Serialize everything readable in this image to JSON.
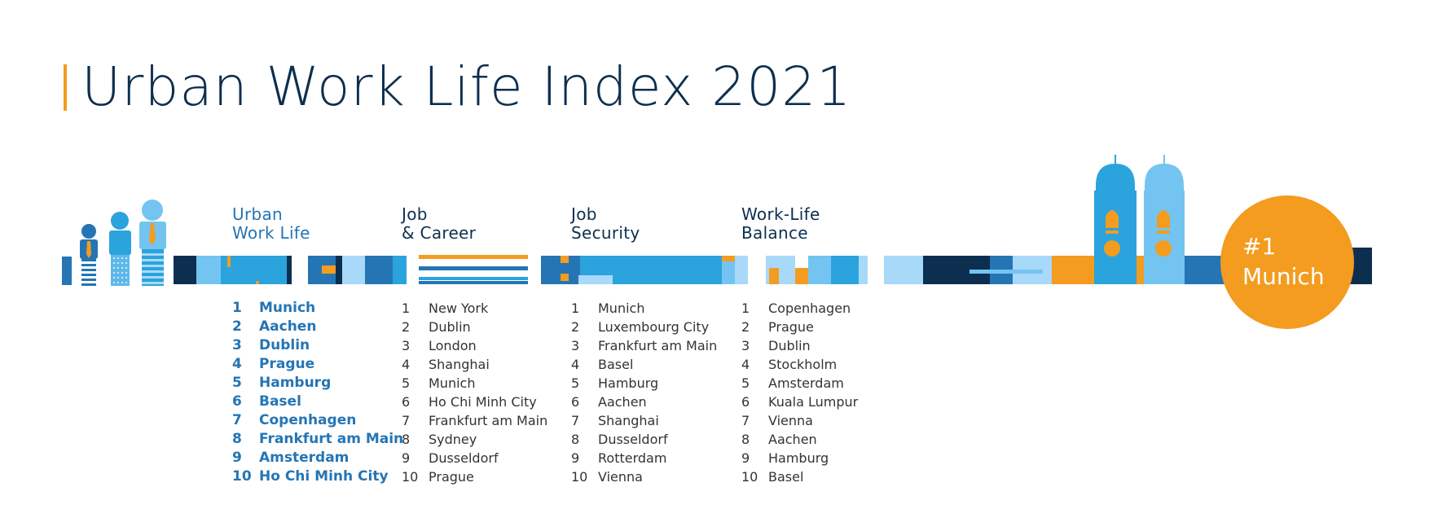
{
  "title": "Urban Work Life Index 2021",
  "badge": {
    "rank": "#1",
    "city": "Munich"
  },
  "colors": {
    "navy": "#0d2f4f",
    "blue": "#2575b4",
    "mid_blue": "#2ba3dd",
    "light_blue": "#74c4f2",
    "pale_blue": "#a8d9f8",
    "orange": "#f39c1f"
  },
  "icons": [
    "people-icon",
    "twin-tower-church-icon"
  ],
  "columns": [
    {
      "id": "urban",
      "heading": [
        "Urban",
        "Work Life"
      ],
      "items": [
        {
          "rank": "1",
          "city": "Munich"
        },
        {
          "rank": "2",
          "city": "Aachen"
        },
        {
          "rank": "3",
          "city": "Dublin"
        },
        {
          "rank": "4",
          "city": "Prague"
        },
        {
          "rank": "5",
          "city": "Hamburg"
        },
        {
          "rank": "6",
          "city": "Basel"
        },
        {
          "rank": "7",
          "city": "Copenhagen"
        },
        {
          "rank": "8",
          "city": "Frankfurt am Main"
        },
        {
          "rank": "9",
          "city": "Amsterdam"
        },
        {
          "rank": "10",
          "city": "Ho Chi Minh City"
        }
      ]
    },
    {
      "id": "career",
      "heading": [
        "Job",
        "& Career"
      ],
      "items": [
        {
          "rank": "1",
          "city": "New York"
        },
        {
          "rank": "2",
          "city": "Dublin"
        },
        {
          "rank": "3",
          "city": "London"
        },
        {
          "rank": "4",
          "city": "Shanghai"
        },
        {
          "rank": "5",
          "city": "Munich"
        },
        {
          "rank": "6",
          "city": "Ho Chi Minh City"
        },
        {
          "rank": "7",
          "city": "Frankfurt am Main"
        },
        {
          "rank": "8",
          "city": "Sydney"
        },
        {
          "rank": "9",
          "city": "Dusseldorf"
        },
        {
          "rank": "10",
          "city": "Prague"
        }
      ]
    },
    {
      "id": "security",
      "heading": [
        "Job",
        "Security"
      ],
      "items": [
        {
          "rank": "1",
          "city": "Munich"
        },
        {
          "rank": "2",
          "city": "Luxembourg City"
        },
        {
          "rank": "3",
          "city": "Frankfurt am Main"
        },
        {
          "rank": "4",
          "city": "Basel"
        },
        {
          "rank": "5",
          "city": "Hamburg"
        },
        {
          "rank": "6",
          "city": "Aachen"
        },
        {
          "rank": "7",
          "city": "Shanghai"
        },
        {
          "rank": "8",
          "city": "Dusseldorf"
        },
        {
          "rank": "9",
          "city": "Rotterdam"
        },
        {
          "rank": "10",
          "city": "Vienna"
        }
      ]
    },
    {
      "id": "balance",
      "heading": [
        "Work-Life",
        "Balance"
      ],
      "items": [
        {
          "rank": "1",
          "city": "Copenhagen"
        },
        {
          "rank": "2",
          "city": "Prague"
        },
        {
          "rank": "3",
          "city": "Dublin"
        },
        {
          "rank": "4",
          "city": "Stockholm"
        },
        {
          "rank": "5",
          "city": "Amsterdam"
        },
        {
          "rank": "6",
          "city": "Kuala Lumpur"
        },
        {
          "rank": "7",
          "city": "Vienna"
        },
        {
          "rank": "8",
          "city": "Aachen"
        },
        {
          "rank": "9",
          "city": "Hamburg"
        },
        {
          "rank": "10",
          "city": "Basel"
        }
      ]
    }
  ]
}
